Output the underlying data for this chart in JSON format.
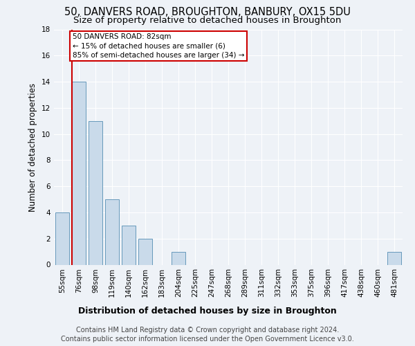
{
  "title": "50, DANVERS ROAD, BROUGHTON, BANBURY, OX15 5DU",
  "subtitle": "Size of property relative to detached houses in Broughton",
  "xlabel": "Distribution of detached houses by size in Broughton",
  "ylabel": "Number of detached properties",
  "categories": [
    "55sqm",
    "76sqm",
    "98sqm",
    "119sqm",
    "140sqm",
    "162sqm",
    "183sqm",
    "204sqm",
    "225sqm",
    "247sqm",
    "268sqm",
    "289sqm",
    "311sqm",
    "332sqm",
    "353sqm",
    "375sqm",
    "396sqm",
    "417sqm",
    "438sqm",
    "460sqm",
    "481sqm"
  ],
  "values": [
    4,
    14,
    11,
    5,
    3,
    2,
    0,
    1,
    0,
    0,
    0,
    0,
    0,
    0,
    0,
    0,
    0,
    0,
    0,
    0,
    1
  ],
  "bar_color": "#c9daea",
  "bar_edge_color": "#6699bb",
  "annotation_text": "50 DANVERS ROAD: 82sqm\n← 15% of detached houses are smaller (6)\n85% of semi-detached houses are larger (34) →",
  "annotation_box_color": "#ffffff",
  "annotation_box_edge_color": "#cc0000",
  "red_line_color": "#cc0000",
  "ylim": [
    0,
    18
  ],
  "yticks": [
    0,
    2,
    4,
    6,
    8,
    10,
    12,
    14,
    16,
    18
  ],
  "footer_line1": "Contains HM Land Registry data © Crown copyright and database right 2024.",
  "footer_line2": "Contains public sector information licensed under the Open Government Licence v3.0.",
  "background_color": "#eef2f7",
  "grid_color": "#ffffff",
  "title_fontsize": 10.5,
  "subtitle_fontsize": 9.5,
  "ylabel_fontsize": 8.5,
  "tick_fontsize": 7.5,
  "annotation_fontsize": 7.5,
  "xlabel_fontsize": 9,
  "footer_fontsize": 7
}
